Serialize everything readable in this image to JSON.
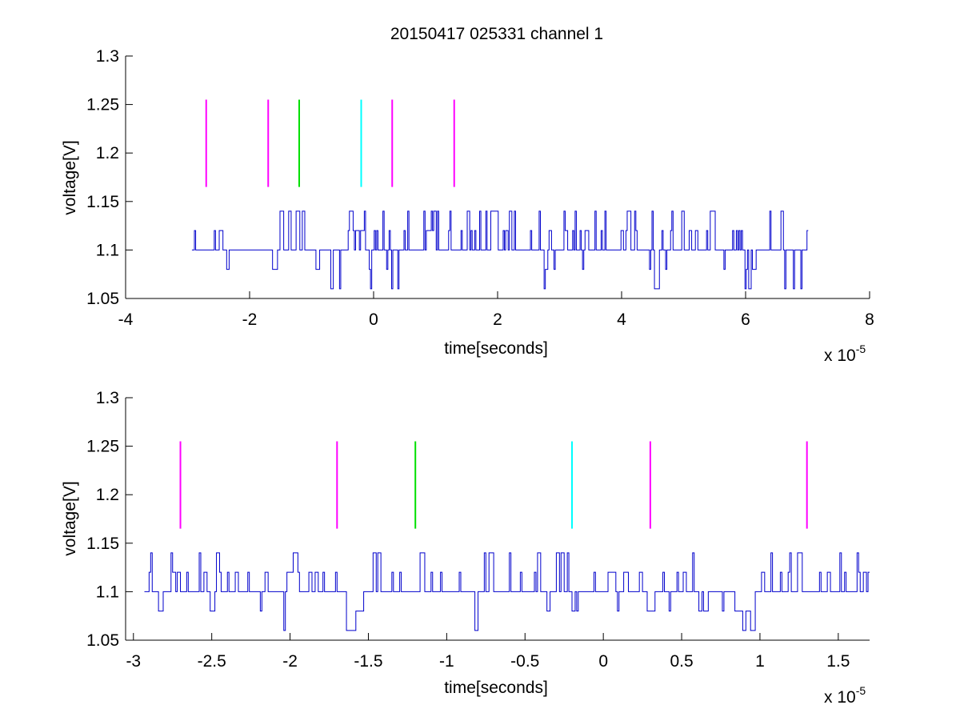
{
  "figure": {
    "title": "20150417 025331 channel 1",
    "background": "#ffffff"
  },
  "colors": {
    "signal": "#0000cc",
    "magenta": "#ff00ff",
    "green": "#00e000",
    "cyan": "#00ffff",
    "axis": "#000000"
  },
  "chart_data": [
    {
      "type": "line",
      "xlabel": "time[seconds]",
      "ylabel": "voltage[V]",
      "x_exponent_label": "x 10",
      "x_exponent": "-5",
      "xlim": [
        -4,
        8
      ],
      "ylim": [
        1.05,
        1.3
      ],
      "xticks": [
        -4,
        -2,
        0,
        2,
        4,
        6,
        8
      ],
      "xtick_labels": [
        "-4",
        "-2",
        "0",
        "2",
        "4",
        "6",
        "8"
      ],
      "yticks": [
        1.05,
        1.1,
        1.15,
        1.2,
        1.25,
        1.3
      ],
      "ytick_labels": [
        "1.05",
        "1.1",
        "1.15",
        "1.2",
        "1.25",
        "1.3"
      ],
      "grid": false,
      "signal": {
        "x_start": -2.93,
        "x_end": 7.0,
        "levels": [
          1.06,
          1.08,
          1.1,
          1.12,
          1.14
        ],
        "baseline": 1.1,
        "color": "#0000cc"
      },
      "markers": {
        "y_range": [
          1.165,
          1.255
        ],
        "x": [
          -2.7,
          -1.7,
          -1.2,
          -0.2,
          0.3,
          1.3
        ],
        "colors": [
          "#ff00ff",
          "#ff00ff",
          "#00e000",
          "#00ffff",
          "#ff00ff",
          "#ff00ff"
        ]
      }
    },
    {
      "type": "line",
      "xlabel": "time[seconds]",
      "ylabel": "voltage[V]",
      "x_exponent_label": "x 10",
      "x_exponent": "-5",
      "xlim": [
        -3.05,
        1.7
      ],
      "ylim": [
        1.05,
        1.3
      ],
      "xticks": [
        -3,
        -2.5,
        -2,
        -1.5,
        -1,
        -0.5,
        0,
        0.5,
        1,
        1.5
      ],
      "xtick_labels": [
        "-3",
        "-2.5",
        "-2",
        "-1.5",
        "-1",
        "-0.5",
        "0",
        "0.5",
        "1",
        "1.5"
      ],
      "yticks": [
        1.05,
        1.1,
        1.15,
        1.2,
        1.25,
        1.3
      ],
      "ytick_labels": [
        "1.05",
        "1.1",
        "1.15",
        "1.2",
        "1.25",
        "1.3"
      ],
      "grid": false,
      "signal": {
        "x_start": -2.93,
        "x_end": 1.7,
        "levels": [
          1.06,
          1.08,
          1.1,
          1.12,
          1.14
        ],
        "baseline": 1.1,
        "color": "#0000cc"
      },
      "markers": {
        "y_range": [
          1.165,
          1.255
        ],
        "x": [
          -2.7,
          -1.7,
          -1.2,
          -0.2,
          0.3,
          1.3
        ],
        "colors": [
          "#ff00ff",
          "#ff00ff",
          "#00e000",
          "#00ffff",
          "#ff00ff",
          "#ff00ff"
        ]
      }
    }
  ]
}
